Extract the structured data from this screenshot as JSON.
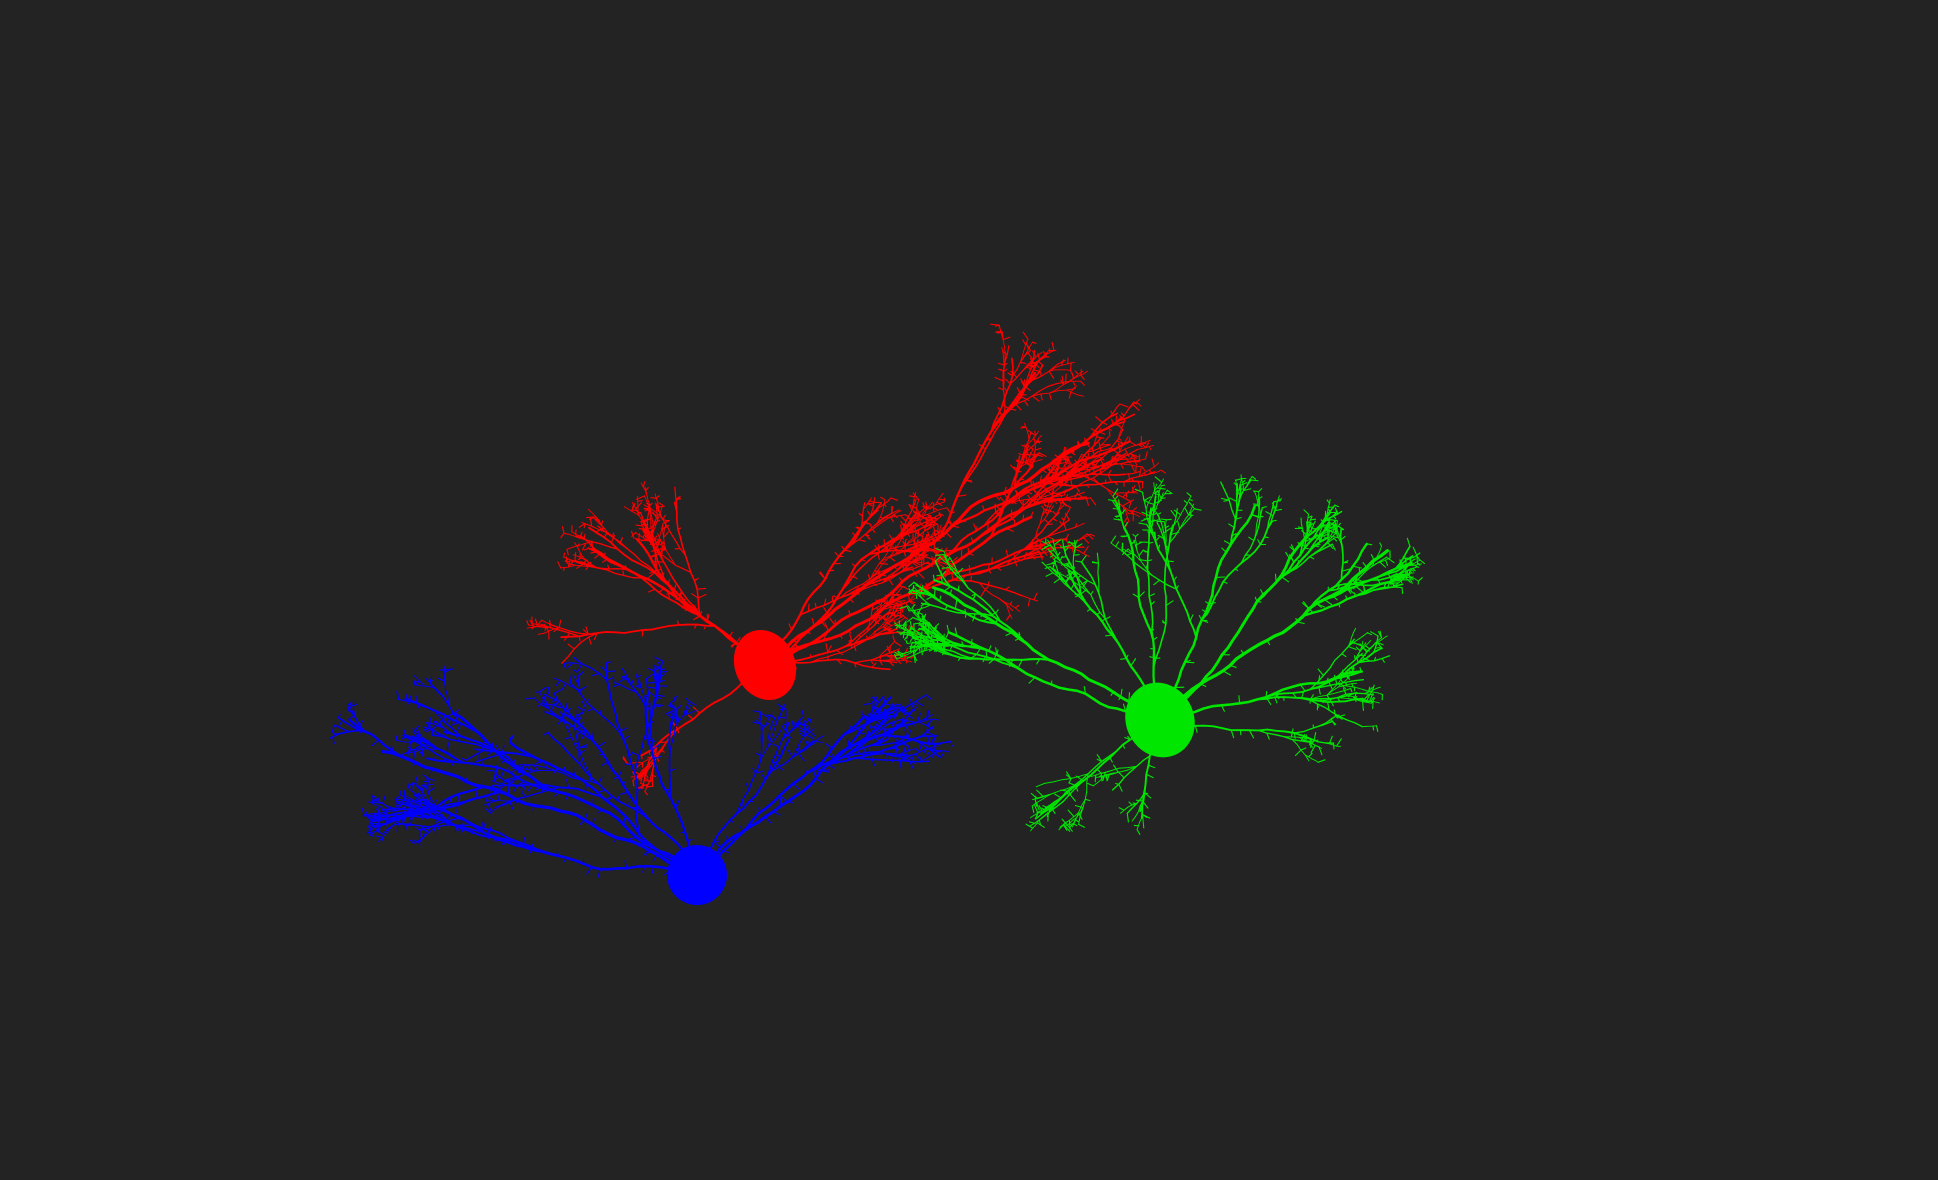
{
  "viewer": {
    "background": "#232323"
  },
  "neurons": [
    {
      "id": "neuron-red",
      "color": "#ff0000",
      "seed": 11
    },
    {
      "id": "neuron-blue",
      "color": "#0000ff",
      "seed": 29
    },
    {
      "id": "neuron-green",
      "color": "#00e600",
      "seed": 47
    }
  ]
}
